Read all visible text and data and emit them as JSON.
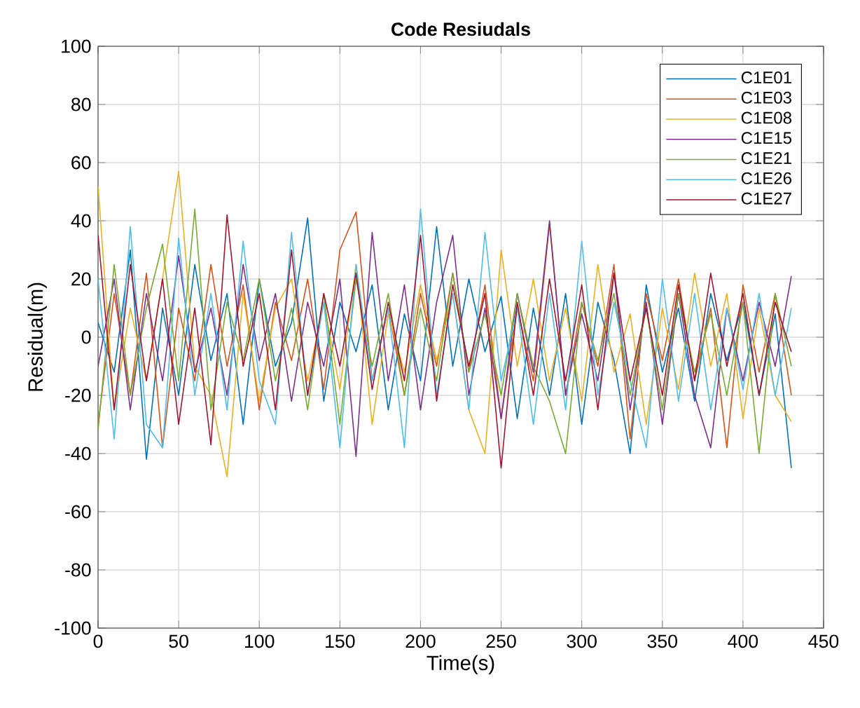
{
  "chart_data": {
    "type": "line",
    "title": "Code Resiudals",
    "xlabel": "Time(s)",
    "ylabel": "Residual(m)",
    "x": [
      0,
      10,
      20,
      30,
      40,
      50,
      60,
      70,
      80,
      90,
      100,
      110,
      120,
      130,
      140,
      150,
      160,
      170,
      180,
      190,
      200,
      210,
      220,
      230,
      240,
      250,
      260,
      270,
      280,
      290,
      300,
      310,
      320,
      330,
      340,
      350,
      360,
      370,
      380,
      390,
      400,
      410,
      420,
      430
    ],
    "xlim": [
      0,
      450
    ],
    "xticks": [
      0,
      50,
      100,
      150,
      200,
      250,
      300,
      350,
      400,
      450
    ],
    "ylim": [
      -100,
      100
    ],
    "yticks": [
      -100,
      -80,
      -60,
      -40,
      -20,
      0,
      20,
      40,
      60,
      80,
      100
    ],
    "grid": true,
    "legend": "top right",
    "series": [
      {
        "name": "C1E01",
        "color": "#0072bd",
        "values": [
          5,
          -12,
          30,
          -42,
          10,
          -20,
          25,
          -8,
          15,
          -30,
          20,
          -10,
          5,
          41,
          -22,
          12,
          -5,
          18,
          -25,
          8,
          -15,
          38,
          -10,
          20,
          -5,
          14,
          -28,
          10,
          -20,
          15,
          -30,
          12,
          -8,
          -40,
          18,
          -12,
          10,
          -22,
          15,
          -8,
          12,
          -20,
          8,
          -45
        ]
      },
      {
        "name": "C1E03",
        "color": "#d95319",
        "values": [
          -30,
          15,
          -20,
          22,
          -38,
          10,
          -15,
          25,
          -10,
          18,
          -25,
          12,
          -8,
          20,
          -18,
          30,
          43,
          -15,
          10,
          -20,
          15,
          -10,
          22,
          -12,
          18,
          -28,
          10,
          -15,
          39,
          -20,
          12,
          -10,
          25,
          -35,
          15,
          -8,
          20,
          -15,
          10,
          -38,
          18,
          -12,
          15,
          -20
        ]
      },
      {
        "name": "C1E08",
        "color": "#edb120",
        "values": [
          52,
          -25,
          10,
          -15,
          20,
          57,
          -10,
          -20,
          -48,
          15,
          -22,
          10,
          20,
          -15,
          12,
          -18,
          25,
          -30,
          8,
          -12,
          18,
          -8,
          15,
          -25,
          -40,
          30,
          -10,
          20,
          -15,
          10,
          -22,
          25,
          -12,
          8,
          -30,
          10,
          -18,
          22,
          -10,
          15,
          -28,
          10,
          -20,
          -29
        ]
      },
      {
        "name": "C1E15",
        "color": "#7e2f8e",
        "values": [
          -10,
          20,
          -25,
          15,
          -15,
          28,
          -12,
          10,
          -20,
          25,
          -8,
          15,
          -22,
          12,
          -10,
          20,
          -41,
          36,
          -15,
          18,
          -25,
          12,
          35,
          -20,
          10,
          -28,
          15,
          -12,
          40,
          -20,
          8,
          -15,
          22,
          -25,
          12,
          -30,
          15,
          -20,
          -38,
          10,
          -15,
          12,
          -10,
          21
        ]
      },
      {
        "name": "C1E21",
        "color": "#77ac30",
        "values": [
          -32,
          25,
          -20,
          10,
          32,
          -15,
          44,
          -25,
          12,
          -8,
          20,
          -15,
          10,
          -25,
          15,
          -30,
          20,
          -10,
          15,
          -20,
          10,
          -15,
          22,
          -12,
          8,
          -20,
          15,
          -10,
          -22,
          -40,
          12,
          -8,
          15,
          -20,
          10,
          -25,
          15,
          -12,
          8,
          -20,
          12,
          -40,
          15,
          -10
        ]
      },
      {
        "name": "C1E26",
        "color": "#4dbeee",
        "values": [
          20,
          -35,
          38,
          -30,
          -38,
          34,
          -20,
          15,
          -25,
          33,
          -15,
          -30,
          36,
          -20,
          12,
          -38,
          25,
          -15,
          10,
          -38,
          44,
          -20,
          15,
          -25,
          36,
          -15,
          10,
          -30,
          15,
          -25,
          33,
          -20,
          12,
          -15,
          -38,
          20,
          -22,
          15,
          -25,
          10,
          -18,
          15,
          -20,
          10
        ]
      },
      {
        "name": "C1E27",
        "color": "#a2142f",
        "values": [
          35,
          -25,
          25,
          -15,
          20,
          -30,
          10,
          -37,
          42,
          -10,
          15,
          -25,
          30,
          -20,
          15,
          -10,
          22,
          -18,
          12,
          -15,
          35,
          -22,
          18,
          -10,
          15,
          -45,
          12,
          -20,
          20,
          -15,
          18,
          -25,
          22,
          -15,
          10,
          -20,
          18,
          -15,
          22,
          -10,
          15,
          -20,
          12,
          -5
        ]
      }
    ]
  }
}
